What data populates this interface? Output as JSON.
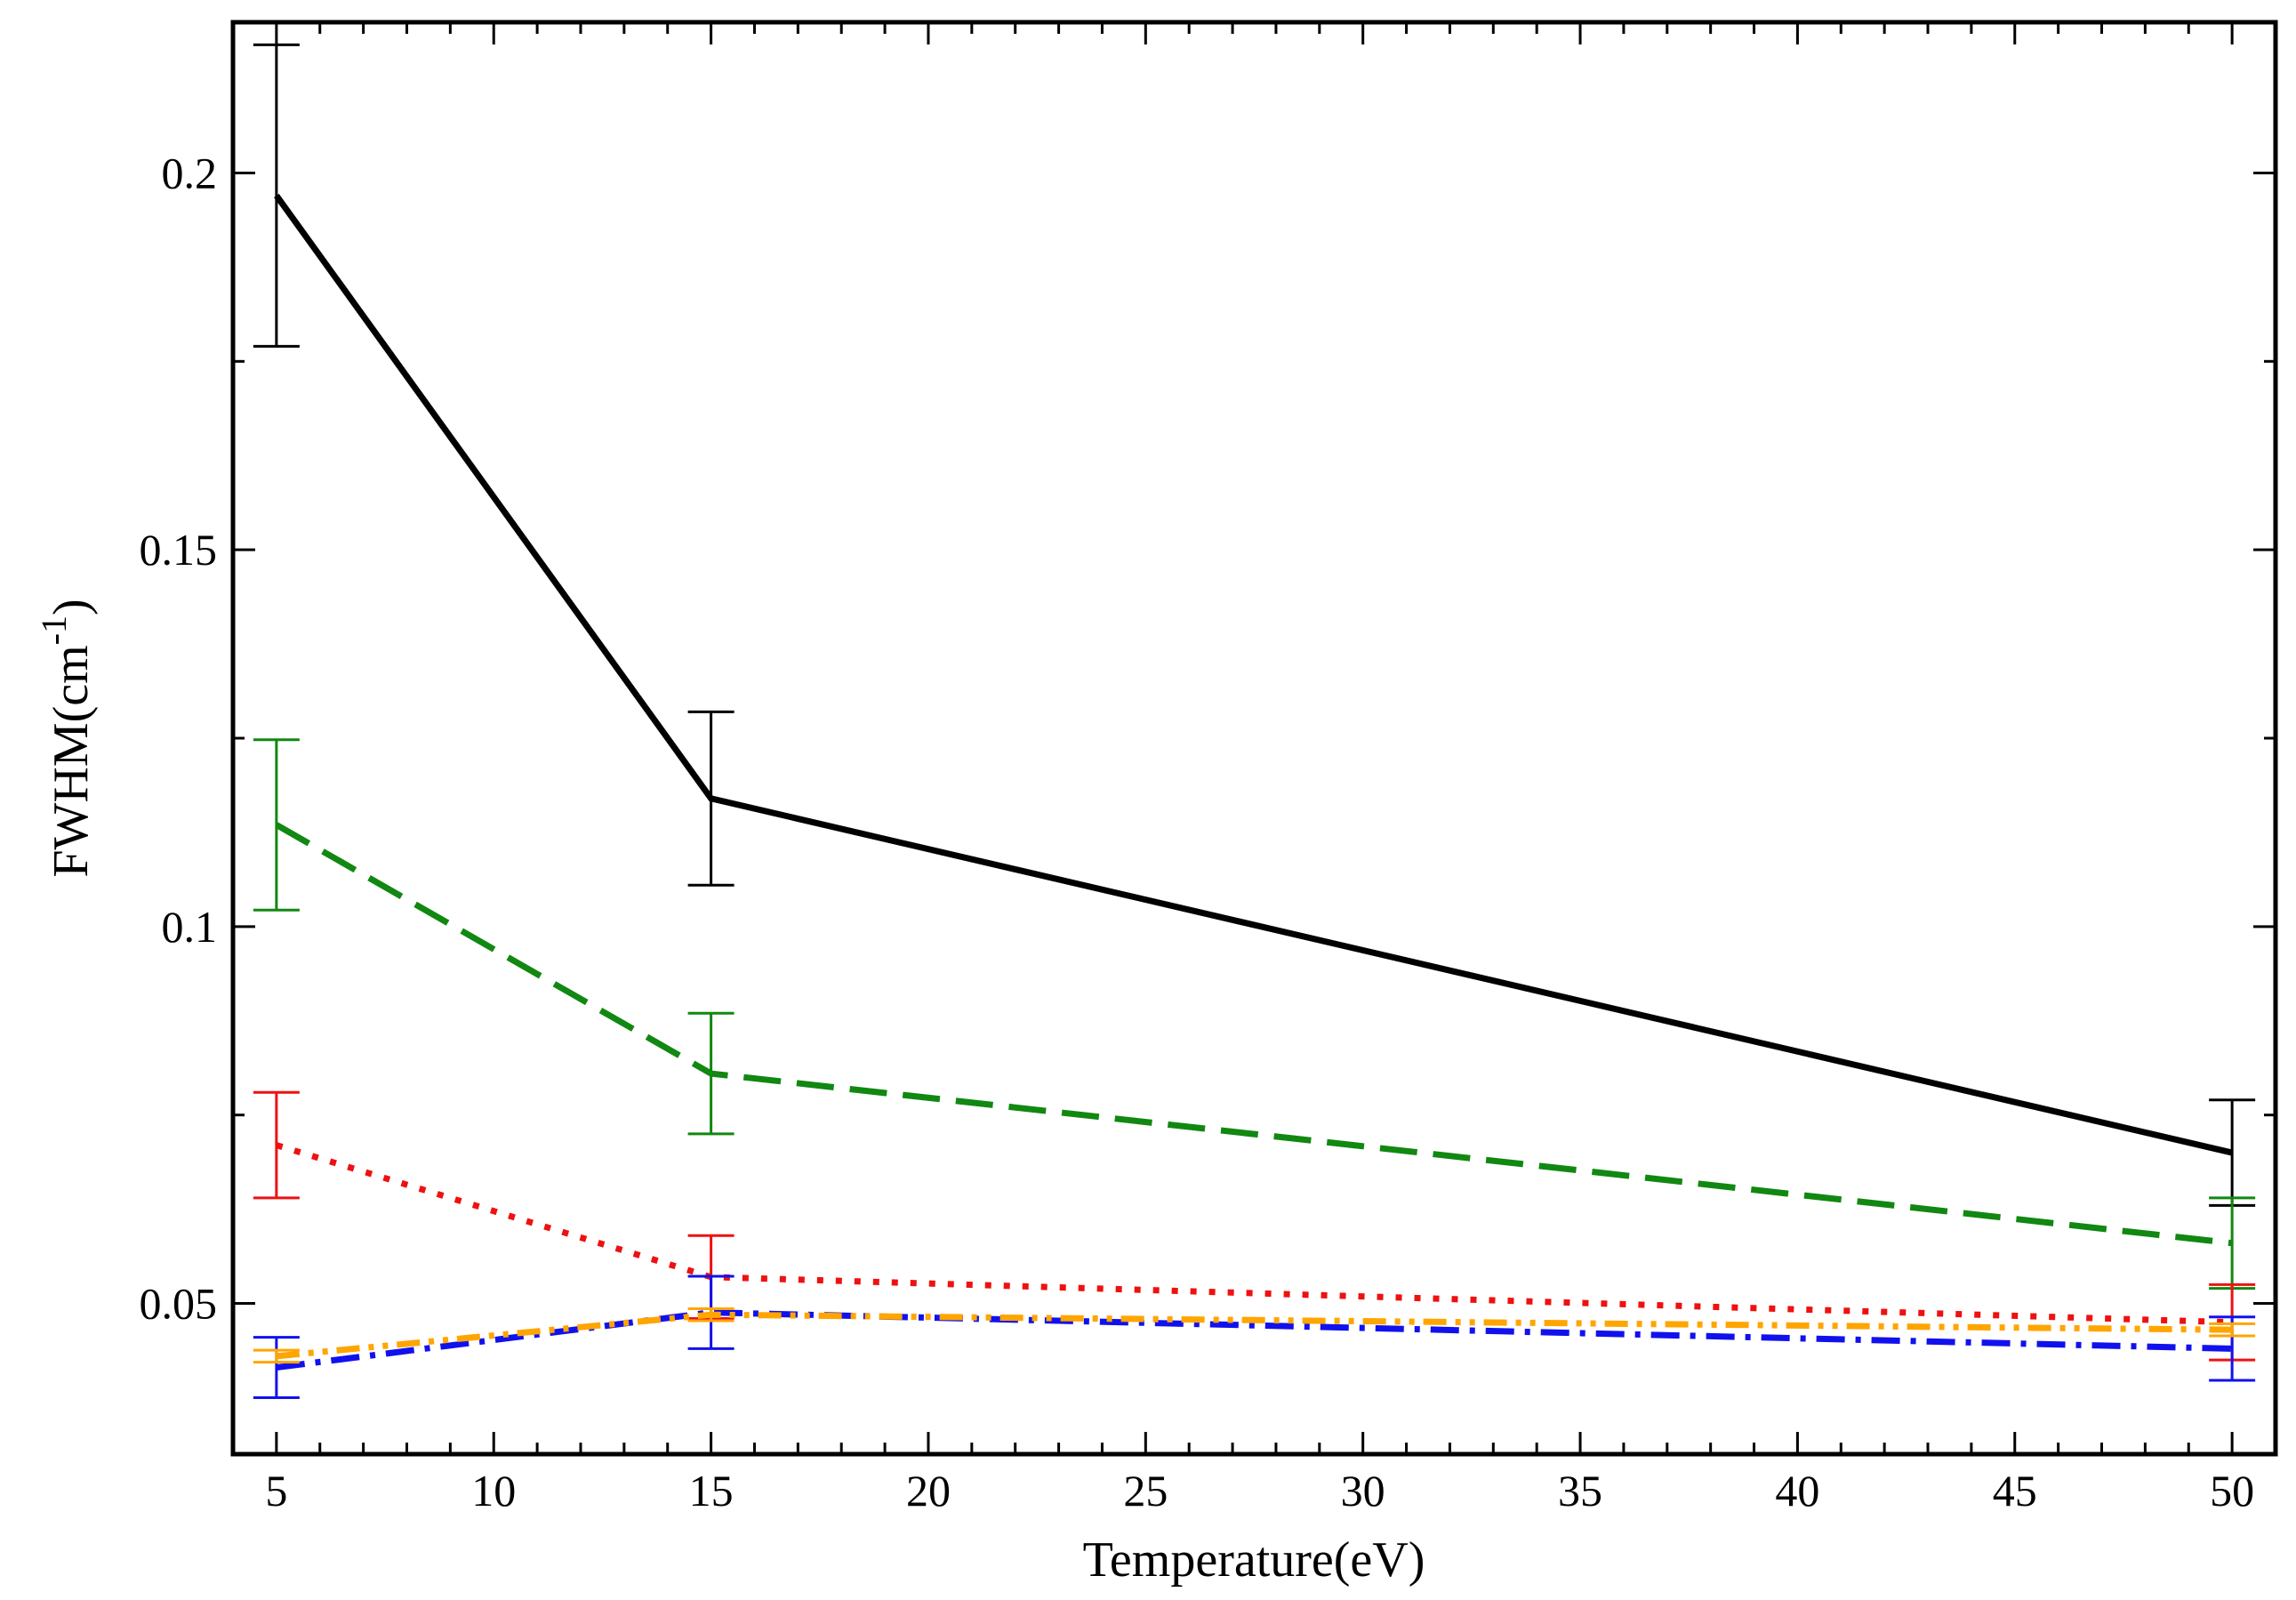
{
  "chart_data": {
    "type": "line",
    "title": "",
    "xlabel": "Temperature(eV)",
    "ylabel_main": "FWHM(cm",
    "ylabel_sup": "-1",
    "ylabel_close": ")",
    "xlim": [
      4,
      51
    ],
    "ylim": [
      0.03,
      0.22
    ],
    "xticks": [
      5,
      10,
      15,
      20,
      25,
      30,
      35,
      40,
      45,
      50
    ],
    "xtick_labels": [
      "5",
      "10",
      "15",
      "20",
      "25",
      "30",
      "35",
      "40",
      "45",
      "50"
    ],
    "yticks": [
      0.05,
      0.1,
      0.15,
      0.2
    ],
    "ytick_labels": [
      "0.05",
      "0.1",
      "0.15",
      "0.2"
    ],
    "x": [
      5,
      15,
      50
    ],
    "grid": false,
    "series": [
      {
        "color": "#000000",
        "style": "solid",
        "values": [
          0.197,
          0.117,
          0.07
        ],
        "errors": [
          0.02,
          0.0115,
          0.007
        ]
      },
      {
        "color": "#118811",
        "style": "dashed",
        "values": [
          0.1135,
          0.0805,
          0.058
        ],
        "errors": [
          0.0113,
          0.008,
          0.006
        ]
      },
      {
        "color": "#ee1111",
        "style": "dotted",
        "values": [
          0.071,
          0.0535,
          0.0475
        ],
        "errors": [
          0.007,
          0.0055,
          0.005
        ]
      },
      {
        "color": "#1111ee",
        "style": "dashdot",
        "values": [
          0.0415,
          0.0488,
          0.044
        ],
        "errors": [
          0.004,
          0.0048,
          0.0042
        ]
      },
      {
        "color": "#ffa500",
        "style": "dashdot2",
        "values": [
          0.043,
          0.0485,
          0.0465
        ],
        "errors": [
          0.0008,
          0.0008,
          0.0008
        ]
      }
    ]
  }
}
